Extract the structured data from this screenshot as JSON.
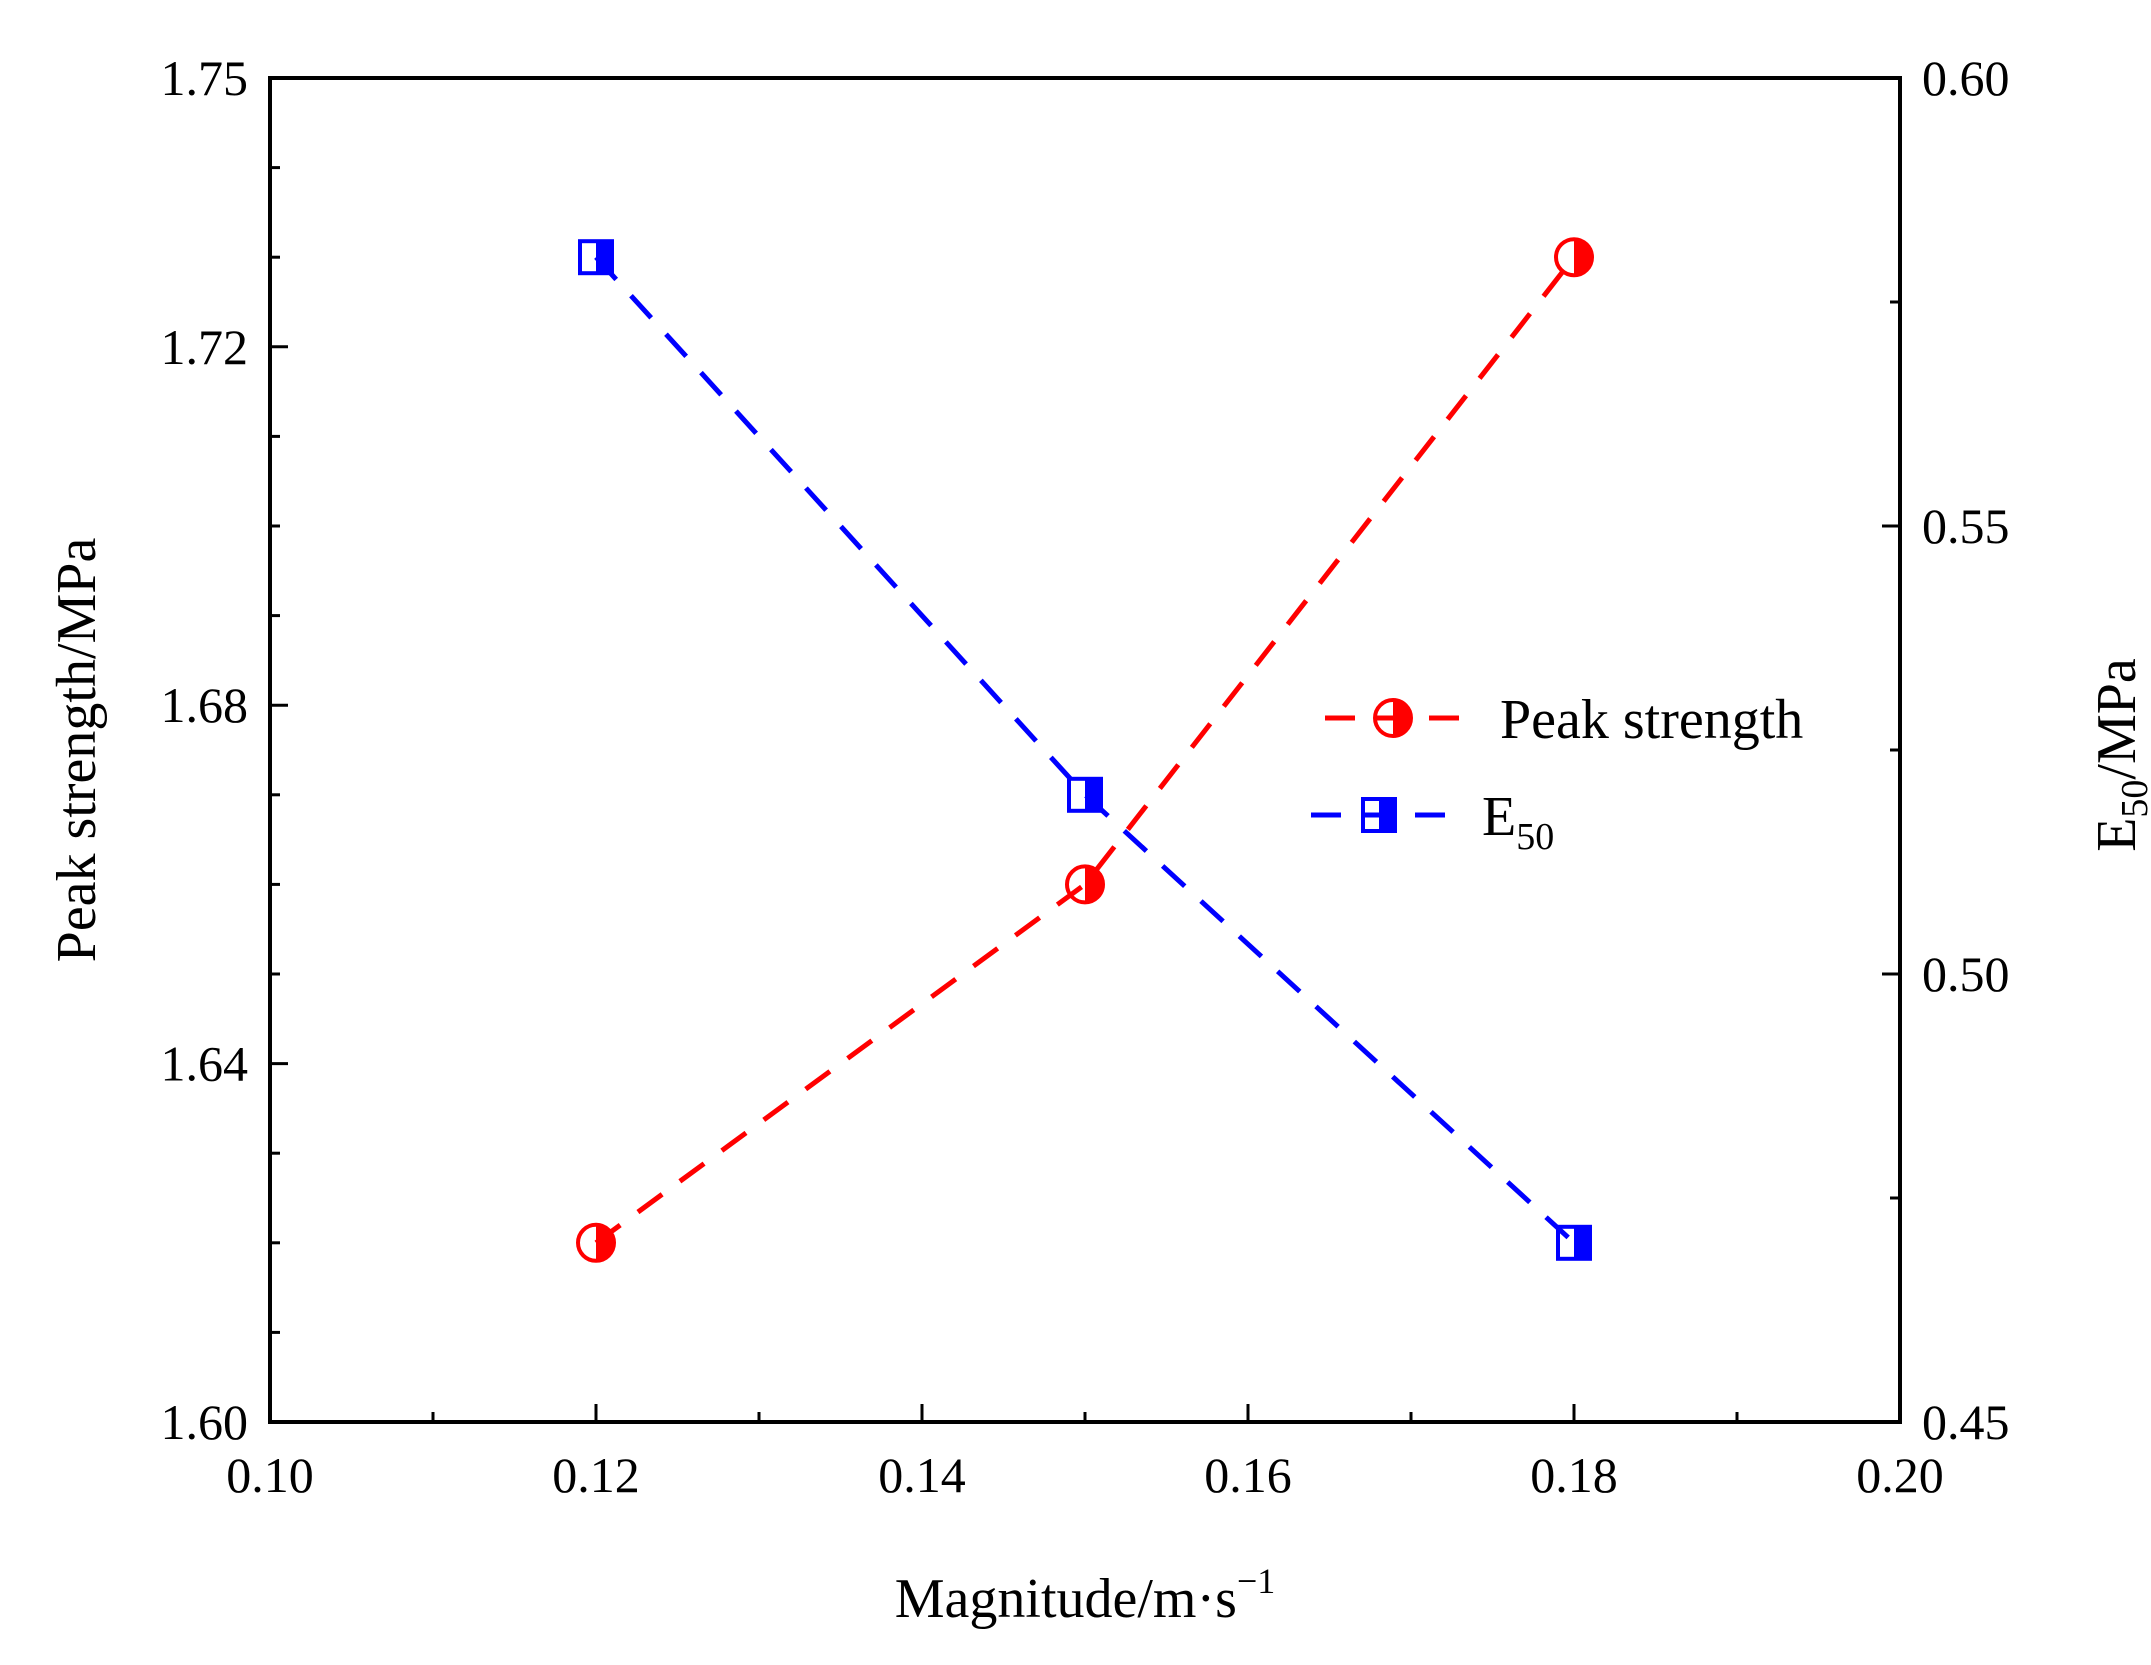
{
  "chart_data": {
    "type": "line",
    "title": "",
    "xlabel": "Magnitude/m·s",
    "xlabel_sup": "−1",
    "ylabel_left": "Peak strength/MPa",
    "ylabel_right_prefix": "E",
    "ylabel_right_sub": "50",
    "ylabel_right_suffix": "/MPa",
    "xlim": [
      0.1,
      0.2
    ],
    "ylim_left": [
      1.6,
      1.75
    ],
    "ylim_right": [
      0.45,
      0.6
    ],
    "x_ticks": [
      "0.10",
      "0.12",
      "0.14",
      "0.16",
      "0.18",
      "0.20"
    ],
    "y_left_ticks": [
      "1.60",
      "1.64",
      "1.68",
      "1.72",
      "1.75"
    ],
    "y_right_ticks": [
      "0.45",
      "0.50",
      "0.55",
      "0.60"
    ],
    "legend_position": "center-right",
    "grid": false,
    "series": [
      {
        "name": "Peak strength",
        "axis": "left",
        "color": "#ff0000",
        "marker": "half-circle",
        "x": [
          0.12,
          0.15,
          0.18
        ],
        "values": [
          1.62,
          1.66,
          1.73
        ]
      },
      {
        "name_prefix": "E",
        "name_sub": "50",
        "axis": "right",
        "color": "#0000ff",
        "marker": "half-square",
        "x": [
          0.12,
          0.15,
          0.18
        ],
        "values": [
          0.58,
          0.52,
          0.47
        ]
      }
    ]
  }
}
